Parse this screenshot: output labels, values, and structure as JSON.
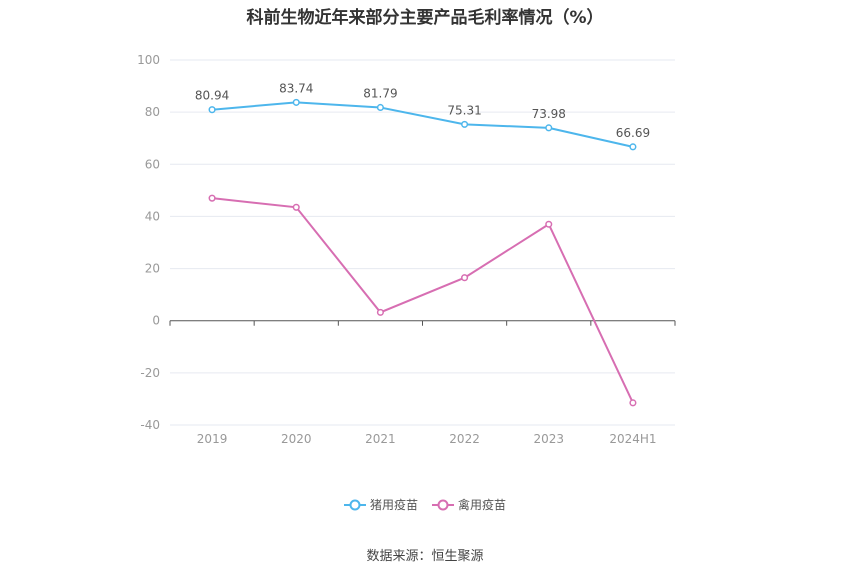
{
  "chart_data": {
    "type": "line",
    "title": "科前生物近年来部分主要产品毛利率情况（%）",
    "categories": [
      "2019",
      "2020",
      "2021",
      "2022",
      "2023",
      "2024H1"
    ],
    "series": [
      {
        "name": "猪用疫苗",
        "color": "#4db6ec",
        "values": [
          80.94,
          83.74,
          81.79,
          75.31,
          73.98,
          66.69
        ],
        "show_labels": true
      },
      {
        "name": "禽用疫苗",
        "color": "#d76eb2",
        "values": [
          47.0,
          43.5,
          3.2,
          16.5,
          37.0,
          -31.5
        ],
        "show_labels": false
      }
    ],
    "ylim": [
      -40,
      100
    ],
    "yticks": [
      100,
      80,
      60,
      40,
      20,
      0,
      -20,
      -40
    ],
    "grid": true,
    "legend_position": "bottom-center"
  },
  "source": "数据来源：恒生聚源"
}
